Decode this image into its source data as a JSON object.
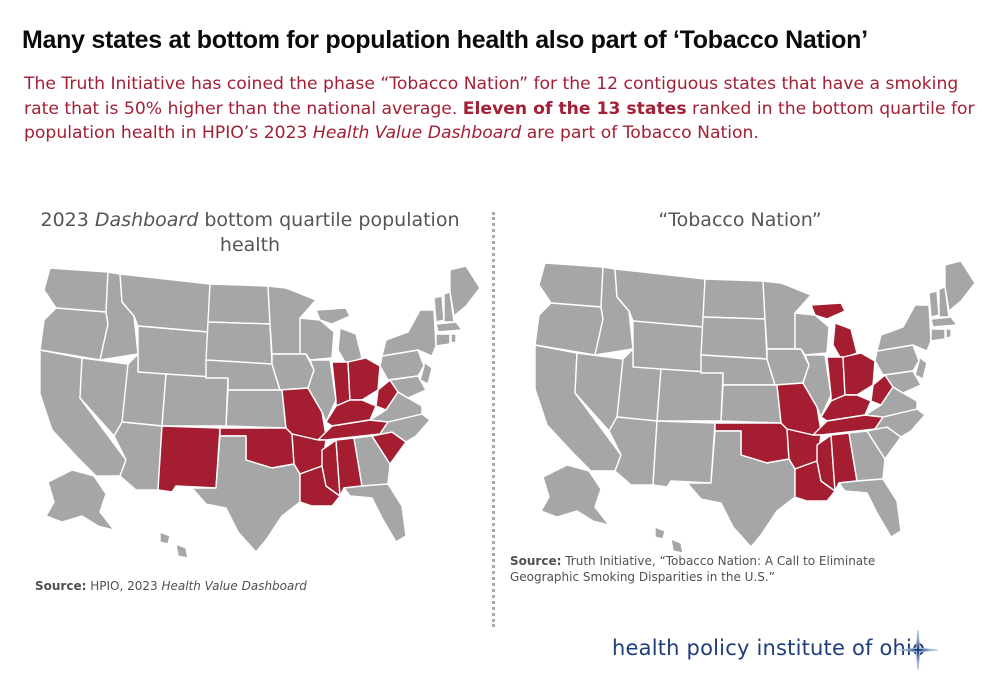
{
  "headline": "Many states at bottom for population health also part of ‘Tobacco Nation’",
  "intro": {
    "part1": "The Truth Initiative has coined the phase “Tobacco Nation” for the 12 contiguous states that have a smoking rate that is 50% higher than the national average. ",
    "bold": "Eleven of the 13 states",
    "part2": " ranked in the bottom quartile for population health in HPIO’s 2023 ",
    "italic": "Health Value Dashboard",
    "part3": " are part of Tobacco Nation."
  },
  "left_map": {
    "title_prefix": "2023 ",
    "title_italic": "Dashboard",
    "title_suffix": " bottom quartile population health",
    "highlighted_states": [
      "New Mexico",
      "Oklahoma",
      "Missouri",
      "Arkansas",
      "Louisiana",
      "Mississippi",
      "Alabama",
      "Tennessee",
      "Kentucky",
      "Indiana",
      "Ohio",
      "West Virginia",
      "South Carolina"
    ],
    "source_label": "Source:",
    "source_text": " HPIO, 2023 ",
    "source_italic": "Health Value Dashboard"
  },
  "right_map": {
    "title": "“Tobacco Nation”",
    "highlighted_states": [
      "Michigan",
      "Indiana",
      "Ohio",
      "West Virginia",
      "Kentucky",
      "Tennessee",
      "Missouri",
      "Arkansas",
      "Oklahoma",
      "Louisiana",
      "Mississippi",
      "Alabama"
    ],
    "source_label": "Source:",
    "source_text": " Truth Initiative, “Tobacco Nation: A Call to Eliminate Geographic Smoking Disparities in the U.S.”"
  },
  "brand": "health policy institute of ohio",
  "colors": {
    "highlight": "#a51d31",
    "land": "#a6a6a6",
    "intro_text": "#a31f36",
    "brand": "#1f3d7a"
  }
}
